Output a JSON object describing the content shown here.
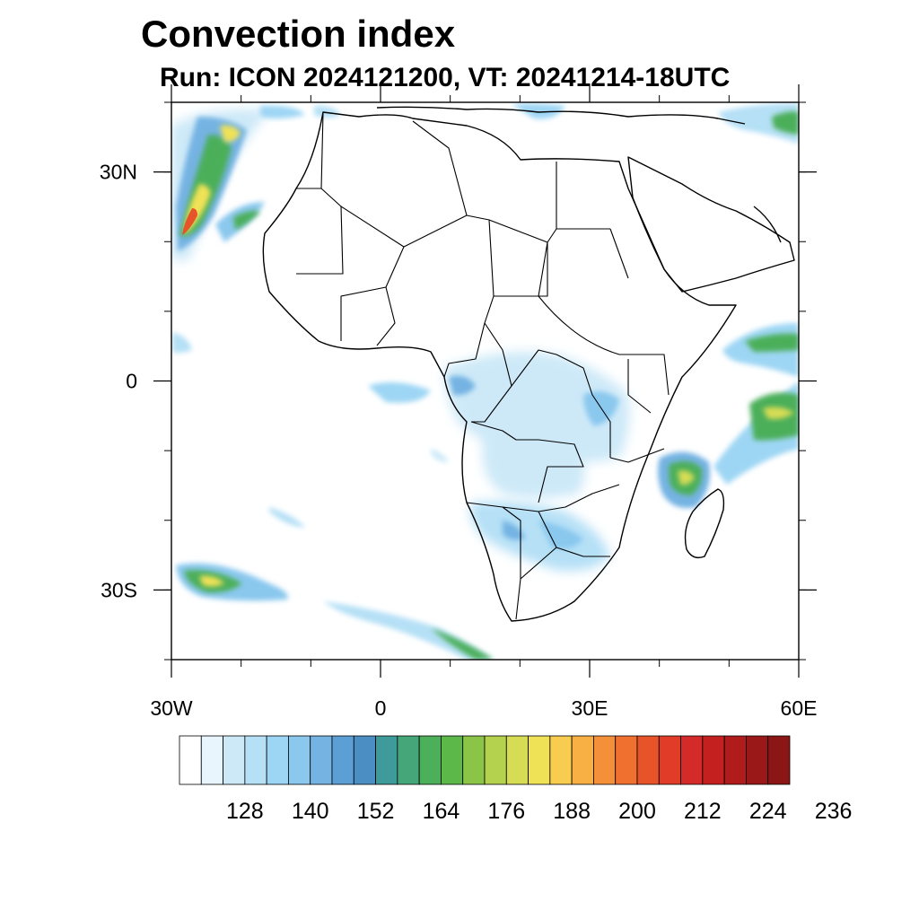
{
  "title": "Convection index",
  "subtitle": "Run: ICON 2024121200,  VT: 20241214-18UTC",
  "map": {
    "lon_range": [
      -30,
      60
    ],
    "lat_range": [
      -40,
      40
    ],
    "x_ticks": [
      {
        "value": -30,
        "label": "30W"
      },
      {
        "value": 0,
        "label": "0"
      },
      {
        "value": 30,
        "label": "30E"
      },
      {
        "value": 60,
        "label": "60E"
      }
    ],
    "y_ticks": [
      {
        "value": 30,
        "label": "30N"
      },
      {
        "value": 0,
        "label": "0"
      },
      {
        "value": -30,
        "label": "30S"
      }
    ],
    "minor_step": 10
  },
  "colorbar": {
    "colors": [
      "#ffffff",
      "#e8f5fc",
      "#cde9f8",
      "#b5e0f6",
      "#9dd6f4",
      "#8ac8ee",
      "#75b3e3",
      "#5c9fd4",
      "#4a8ec4",
      "#3f9a9a",
      "#45a67a",
      "#4caf5a",
      "#5cb848",
      "#8cc448",
      "#b4d24e",
      "#d6dc54",
      "#f0e256",
      "#f8cc4e",
      "#f8b044",
      "#f5903a",
      "#f07030",
      "#e8542a",
      "#e03c28",
      "#d42a2a",
      "#c42020",
      "#b01c1c",
      "#9a1818",
      "#8a1616"
    ],
    "labels": [
      "128",
      "140",
      "152",
      "164",
      "176",
      "188",
      "200",
      "212",
      "224",
      "236"
    ]
  }
}
